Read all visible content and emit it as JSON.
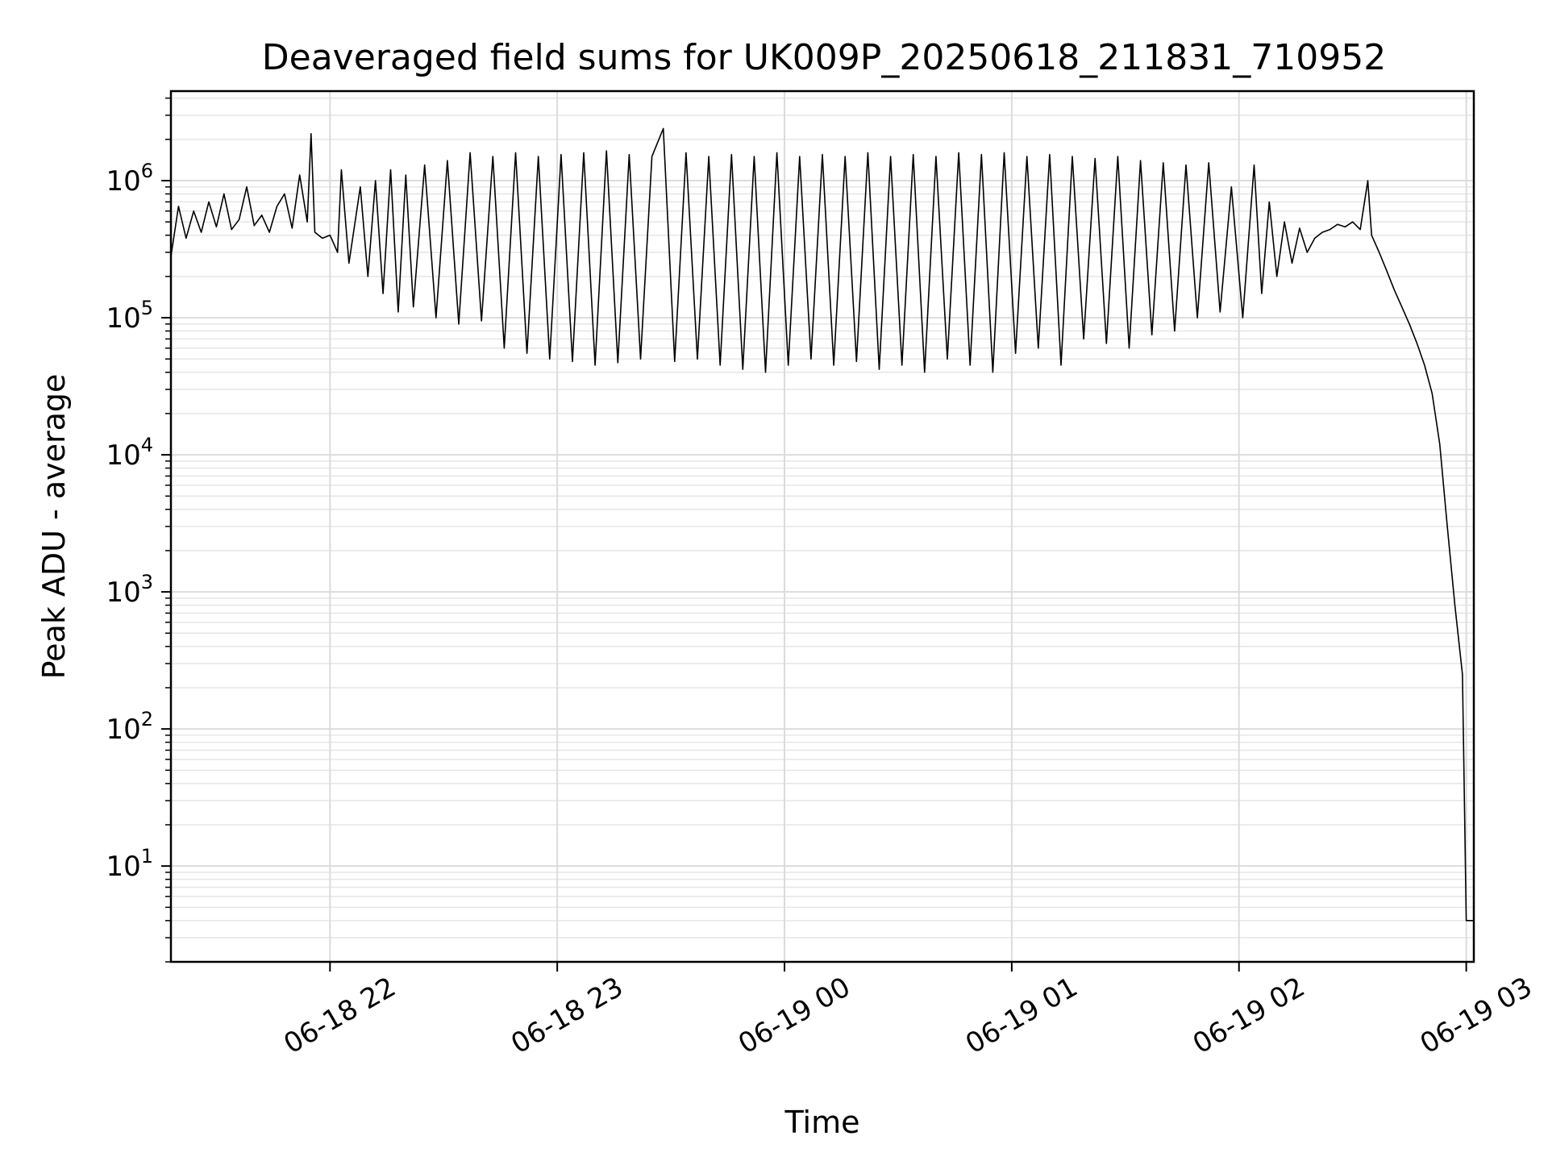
{
  "chart_data": {
    "type": "line",
    "title": "Deaveraged field sums for UK009P_20250618_211831_710952",
    "xlabel": "Time",
    "ylabel": "Peak ADU - average",
    "yscale": "log",
    "grid": true,
    "grid_minor": true,
    "xlim": [
      "2025-06-18 21:18",
      "2025-06-19 03:02"
    ],
    "ylim": [
      2,
      4500000
    ],
    "x_ticks": [
      {
        "value": "2025-06-18 22:00",
        "label": "06-18 22"
      },
      {
        "value": "2025-06-18 23:00",
        "label": "06-18 23"
      },
      {
        "value": "2025-06-19 00:00",
        "label": "06-19 00"
      },
      {
        "value": "2025-06-19 01:00",
        "label": "06-19 01"
      },
      {
        "value": "2025-06-19 02:00",
        "label": "06-19 02"
      },
      {
        "value": "2025-06-19 03:00",
        "label": "06-19 03"
      }
    ],
    "y_ticks": [
      {
        "value": 10,
        "base": "10",
        "exp": "1"
      },
      {
        "value": 100,
        "base": "10",
        "exp": "2"
      },
      {
        "value": 1000,
        "base": "10",
        "exp": "3"
      },
      {
        "value": 10000,
        "base": "10",
        "exp": "4"
      },
      {
        "value": 100000,
        "base": "10",
        "exp": "5"
      },
      {
        "value": 1000000,
        "base": "10",
        "exp": "6"
      }
    ],
    "series": [
      {
        "color": "#000000",
        "points": [
          [
            "2025-06-18 21:18",
            280000
          ],
          [
            "2025-06-18 21:20",
            650000
          ],
          [
            "2025-06-18 21:22",
            380000
          ],
          [
            "2025-06-18 21:24",
            600000
          ],
          [
            "2025-06-18 21:26",
            420000
          ],
          [
            "2025-06-18 21:28",
            700000
          ],
          [
            "2025-06-18 21:30",
            460000
          ],
          [
            "2025-06-18 21:32",
            800000
          ],
          [
            "2025-06-18 21:34",
            440000
          ],
          [
            "2025-06-18 21:36",
            520000
          ],
          [
            "2025-06-18 21:38",
            900000
          ],
          [
            "2025-06-18 21:40",
            470000
          ],
          [
            "2025-06-18 21:42",
            560000
          ],
          [
            "2025-06-18 21:44",
            420000
          ],
          [
            "2025-06-18 21:46",
            650000
          ],
          [
            "2025-06-18 21:48",
            800000
          ],
          [
            "2025-06-18 21:50",
            450000
          ],
          [
            "2025-06-18 21:52",
            1100000
          ],
          [
            "2025-06-18 21:54",
            500000
          ],
          [
            "2025-06-18 21:55",
            2200000
          ],
          [
            "2025-06-18 21:56",
            420000
          ],
          [
            "2025-06-18 21:58",
            380000
          ],
          [
            "2025-06-18 22:00",
            400000
          ],
          [
            "2025-06-18 22:02",
            300000
          ],
          [
            "2025-06-18 22:03",
            1200000
          ],
          [
            "2025-06-18 22:05",
            250000
          ],
          [
            "2025-06-18 22:08",
            900000
          ],
          [
            "2025-06-18 22:10",
            200000
          ],
          [
            "2025-06-18 22:12",
            1000000
          ],
          [
            "2025-06-18 22:14",
            150000
          ],
          [
            "2025-06-18 22:16",
            1200000
          ],
          [
            "2025-06-18 22:18",
            110000
          ],
          [
            "2025-06-18 22:20",
            1100000
          ],
          [
            "2025-06-18 22:22",
            120000
          ],
          [
            "2025-06-18 22:25",
            1300000
          ],
          [
            "2025-06-18 22:28",
            100000
          ],
          [
            "2025-06-18 22:31",
            1400000
          ],
          [
            "2025-06-18 22:34",
            90000
          ],
          [
            "2025-06-18 22:37",
            1600000
          ],
          [
            "2025-06-18 22:40",
            95000
          ],
          [
            "2025-06-18 22:43",
            1500000
          ],
          [
            "2025-06-18 22:46",
            60000
          ],
          [
            "2025-06-18 22:49",
            1600000
          ],
          [
            "2025-06-18 22:52",
            55000
          ],
          [
            "2025-06-18 22:55",
            1500000
          ],
          [
            "2025-06-18 22:58",
            50000
          ],
          [
            "2025-06-18 23:01",
            1550000
          ],
          [
            "2025-06-18 23:04",
            48000
          ],
          [
            "2025-06-18 23:07",
            1600000
          ],
          [
            "2025-06-18 23:10",
            45000
          ],
          [
            "2025-06-18 23:13",
            1650000
          ],
          [
            "2025-06-18 23:16",
            47000
          ],
          [
            "2025-06-18 23:19",
            1550000
          ],
          [
            "2025-06-18 23:22",
            50000
          ],
          [
            "2025-06-18 23:25",
            1500000
          ],
          [
            "2025-06-18 23:28",
            2400000
          ],
          [
            "2025-06-18 23:31",
            48000
          ],
          [
            "2025-06-18 23:34",
            1600000
          ],
          [
            "2025-06-18 23:37",
            50000
          ],
          [
            "2025-06-18 23:40",
            1500000
          ],
          [
            "2025-06-18 23:43",
            45000
          ],
          [
            "2025-06-18 23:46",
            1550000
          ],
          [
            "2025-06-18 23:49",
            42000
          ],
          [
            "2025-06-18 23:52",
            1500000
          ],
          [
            "2025-06-18 23:55",
            40000
          ],
          [
            "2025-06-18 23:58",
            1600000
          ],
          [
            "2025-06-19 00:01",
            45000
          ],
          [
            "2025-06-19 00:04",
            1500000
          ],
          [
            "2025-06-19 00:07",
            50000
          ],
          [
            "2025-06-19 00:10",
            1550000
          ],
          [
            "2025-06-19 00:13",
            45000
          ],
          [
            "2025-06-19 00:16",
            1500000
          ],
          [
            "2025-06-19 00:19",
            48000
          ],
          [
            "2025-06-19 00:22",
            1600000
          ],
          [
            "2025-06-19 00:25",
            42000
          ],
          [
            "2025-06-19 00:28",
            1500000
          ],
          [
            "2025-06-19 00:31",
            45000
          ],
          [
            "2025-06-19 00:34",
            1550000
          ],
          [
            "2025-06-19 00:37",
            40000
          ],
          [
            "2025-06-19 00:40",
            1500000
          ],
          [
            "2025-06-19 00:43",
            50000
          ],
          [
            "2025-06-19 00:46",
            1600000
          ],
          [
            "2025-06-19 00:49",
            45000
          ],
          [
            "2025-06-19 00:52",
            1550000
          ],
          [
            "2025-06-19 00:55",
            40000
          ],
          [
            "2025-06-19 00:58",
            1600000
          ],
          [
            "2025-06-19 01:01",
            55000
          ],
          [
            "2025-06-19 01:04",
            1500000
          ],
          [
            "2025-06-19 01:07",
            60000
          ],
          [
            "2025-06-19 01:10",
            1550000
          ],
          [
            "2025-06-19 01:13",
            45000
          ],
          [
            "2025-06-19 01:16",
            1500000
          ],
          [
            "2025-06-19 01:19",
            70000
          ],
          [
            "2025-06-19 01:22",
            1450000
          ],
          [
            "2025-06-19 01:25",
            65000
          ],
          [
            "2025-06-19 01:28",
            1500000
          ],
          [
            "2025-06-19 01:31",
            60000
          ],
          [
            "2025-06-19 01:34",
            1400000
          ],
          [
            "2025-06-19 01:37",
            75000
          ],
          [
            "2025-06-19 01:40",
            1350000
          ],
          [
            "2025-06-19 01:43",
            80000
          ],
          [
            "2025-06-19 01:46",
            1300000
          ],
          [
            "2025-06-19 01:49",
            100000
          ],
          [
            "2025-06-19 01:52",
            1350000
          ],
          [
            "2025-06-19 01:55",
            110000
          ],
          [
            "2025-06-19 01:58",
            900000
          ],
          [
            "2025-06-19 02:01",
            100000
          ],
          [
            "2025-06-19 02:04",
            1300000
          ],
          [
            "2025-06-19 02:06",
            150000
          ],
          [
            "2025-06-19 02:08",
            700000
          ],
          [
            "2025-06-19 02:10",
            200000
          ],
          [
            "2025-06-19 02:12",
            500000
          ],
          [
            "2025-06-19 02:14",
            250000
          ],
          [
            "2025-06-19 02:16",
            450000
          ],
          [
            "2025-06-19 02:18",
            300000
          ],
          [
            "2025-06-19 02:20",
            380000
          ],
          [
            "2025-06-19 02:22",
            420000
          ],
          [
            "2025-06-19 02:24",
            440000
          ],
          [
            "2025-06-19 02:26",
            480000
          ],
          [
            "2025-06-19 02:28",
            460000
          ],
          [
            "2025-06-19 02:30",
            500000
          ],
          [
            "2025-06-19 02:32",
            440000
          ],
          [
            "2025-06-19 02:34",
            1000000
          ],
          [
            "2025-06-19 02:35",
            400000
          ],
          [
            "2025-06-19 02:37",
            300000
          ],
          [
            "2025-06-19 02:39",
            220000
          ],
          [
            "2025-06-19 02:41",
            160000
          ],
          [
            "2025-06-19 02:43",
            120000
          ],
          [
            "2025-06-19 02:45",
            90000
          ],
          [
            "2025-06-19 02:47",
            65000
          ],
          [
            "2025-06-19 02:49",
            45000
          ],
          [
            "2025-06-19 02:51",
            28000
          ],
          [
            "2025-06-19 02:53",
            12000
          ],
          [
            "2025-06-19 02:55",
            3000
          ],
          [
            "2025-06-19 02:57",
            800
          ],
          [
            "2025-06-19 02:59",
            250
          ],
          [
            "2025-06-19 03:00",
            4
          ],
          [
            "2025-06-19 03:02",
            4
          ]
        ]
      }
    ]
  }
}
